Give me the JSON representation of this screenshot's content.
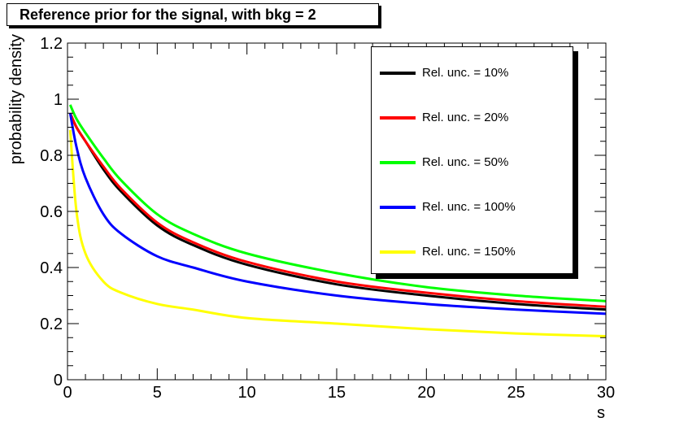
{
  "chart_data": {
    "type": "line",
    "title": "Reference prior for the signal, with bkg = 2",
    "xlabel": "s",
    "ylabel": "probability density",
    "xlim": [
      0,
      30
    ],
    "ylim": [
      0,
      1.2
    ],
    "xticks": [
      0,
      5,
      10,
      15,
      20,
      25,
      30
    ],
    "yticks": [
      0,
      0.2,
      0.4,
      0.6,
      0.8,
      1,
      1.2
    ],
    "xtick_labels": [
      "0",
      "5",
      "10",
      "15",
      "20",
      "25",
      "30"
    ],
    "ytick_labels": [
      "0",
      "0.2",
      "0.4",
      "0.6",
      "0.8",
      "1",
      "1.2"
    ],
    "grid": false,
    "legend_position": "top-right",
    "series": [
      {
        "name": "Rel. unc. = 10%",
        "color": "#000000",
        "x": [
          0.15,
          0.5,
          1,
          2,
          3,
          5,
          7,
          10,
          15,
          20,
          25,
          30
        ],
        "y": [
          0.95,
          0.9,
          0.85,
          0.75,
          0.67,
          0.55,
          0.48,
          0.41,
          0.34,
          0.3,
          0.27,
          0.25
        ]
      },
      {
        "name": "Rel. unc. = 20%",
        "color": "#ff0000",
        "x": [
          0.15,
          0.5,
          1,
          2,
          3,
          5,
          7,
          10,
          15,
          20,
          25,
          30
        ],
        "y": [
          0.95,
          0.9,
          0.85,
          0.76,
          0.68,
          0.56,
          0.49,
          0.42,
          0.35,
          0.31,
          0.28,
          0.26
        ]
      },
      {
        "name": "Rel. unc. = 50%",
        "color": "#00ff00",
        "x": [
          0.15,
          0.5,
          1,
          2,
          3,
          5,
          7,
          10,
          15,
          20,
          25,
          30
        ],
        "y": [
          0.98,
          0.93,
          0.88,
          0.79,
          0.71,
          0.59,
          0.52,
          0.45,
          0.38,
          0.33,
          0.3,
          0.28
        ]
      },
      {
        "name": "Rel. unc. = 100%",
        "color": "#0000ff",
        "x": [
          0.15,
          0.5,
          1,
          2,
          3,
          5,
          7,
          10,
          15,
          20,
          25,
          30
        ],
        "y": [
          0.95,
          0.83,
          0.72,
          0.59,
          0.52,
          0.44,
          0.4,
          0.35,
          0.3,
          0.27,
          0.25,
          0.235
        ]
      },
      {
        "name": "Rel. unc. = 150%",
        "color": "#ffff00",
        "x": [
          0.15,
          0.5,
          1,
          2,
          3,
          5,
          7,
          10,
          15,
          20,
          25,
          30
        ],
        "y": [
          0.89,
          0.6,
          0.45,
          0.35,
          0.31,
          0.27,
          0.25,
          0.22,
          0.2,
          0.18,
          0.165,
          0.155
        ]
      }
    ]
  }
}
